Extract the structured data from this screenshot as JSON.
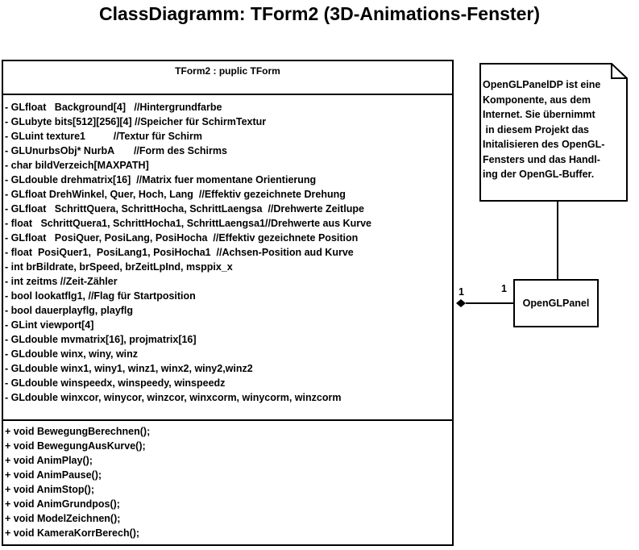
{
  "title": "ClassDiagramm: TForm2 (3D-Animations-Fenster)",
  "class": {
    "name": "TForm2 : puplic TForm",
    "attributes": [
      "- GLfloat   Background[4]   //Hintergrundfarbe",
      "- GLubyte bits[512][256][4] //Speicher für SchirmTextur",
      "- GLuint texture1          //Textur für Schirm",
      "- GLUnurbsObj* NurbA       //Form des Schirms",
      "- char bildVerzeich[MAXPATH]",
      "- GLdouble drehmatrix[16]  //Matrix fuer momentane Orientierung",
      "- GLfloat DrehWinkel, Quer, Hoch, Lang  //Effektiv gezeichnete Drehung",
      "- GLfloat   SchrittQuera, SchrittHocha, SchrittLaengsa  //Drehwerte Zeitlupe",
      "- float   SchrittQuera1, SchrittHocha1, SchrittLaengsa1//Drehwerte aus Kurve",
      "- GLfloat   PosiQuer, PosiLang, PosiHocha  //Effektiv gezeichnete Position",
      "- float  PosiQuer1,  PosiLang1, PosiHocha1  //Achsen-Position aud Kurve",
      "- int brBildrate, brSpeed, brZeitLpInd, msppix_x",
      "- int zeitms //Zeit-Zähler",
      "- bool lookatflg1, //Flag für Startposition",
      "- bool dauerplayflg, playflg",
      "- GLint viewport[4]",
      "- GLdouble mvmatrix[16], projmatrix[16]",
      "- GLdouble winx, winy, winz",
      "- GLdouble winx1, winy1, winz1, winx2, winy2,winz2",
      "- GLdouble winspeedx, winspeedy, winspeedz",
      "- GLdouble winxcor, winycor, winzcor, winxcorm, winycorm, winzcorm"
    ],
    "methods": [
      "+ void BewegungBerechnen();",
      "+ void BewegungAusKurve();",
      "+ void AnimPlay();",
      "+ void AnimPause();",
      "+ void AnimStop();",
      "+ void AnimGrundpos();",
      "+ void ModelZeichnen();",
      "+ void KameraKorrBerech();"
    ]
  },
  "note": {
    "text": "OpenGLPanelDP ist eine\nKomponente, aus dem\nInternet. Sie übernimmt\n in diesem Projekt das\nInitalisieren des OpenGL-\nFensters und das Handl-\ning der OpenGL-Buffer."
  },
  "panel": {
    "name": "OpenGLPanel"
  },
  "association": {
    "source_multiplicity": "1",
    "target_multiplicity": "1"
  }
}
